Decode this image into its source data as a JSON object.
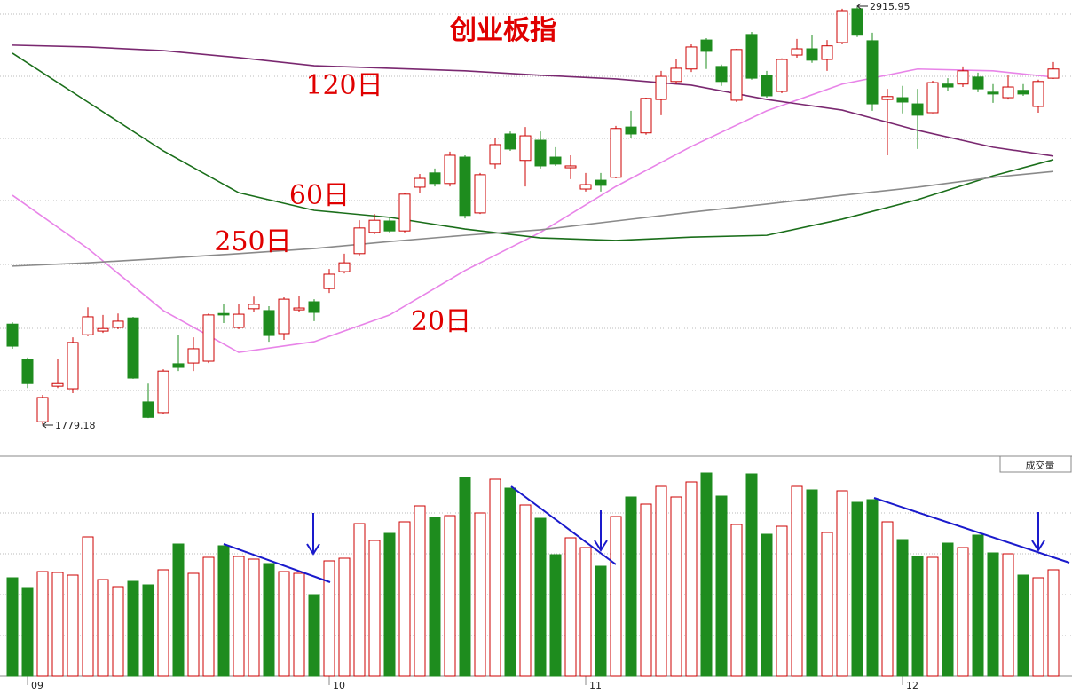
{
  "chart_data": [
    {
      "type": "candlestick",
      "title": "创业板指",
      "categories": [
        null,
        "09",
        null,
        null,
        null,
        null,
        null,
        null,
        null,
        null,
        null,
        null,
        null,
        null,
        null,
        null,
        null,
        null,
        null,
        null,
        null,
        "10",
        null,
        null,
        null,
        null,
        null,
        null,
        null,
        null,
        null,
        null,
        null,
        null,
        null,
        null,
        null,
        null,
        "11",
        null,
        null,
        null,
        null,
        null,
        null,
        null,
        null,
        null,
        null,
        null,
        null,
        null,
        null,
        null,
        null,
        null,
        null,
        null,
        null,
        "12",
        null,
        null,
        null,
        null,
        null,
        null,
        null,
        null,
        null,
        null
      ],
      "open": [
        2052,
        1956,
        1786,
        1883,
        1876,
        2023,
        2033,
        2043,
        2069,
        1840,
        1811,
        1944,
        1946,
        1951,
        2081,
        2043,
        2094,
        2089,
        2026,
        2091,
        2113,
        2149,
        2195,
        2244,
        2302,
        2333,
        2306,
        2425,
        2464,
        2435,
        2507,
        2355,
        2488,
        2570,
        2498,
        2553,
        2507,
        2478,
        2420,
        2444,
        2452,
        2589,
        2573,
        2664,
        2713,
        2747,
        2826,
        2754,
        2662,
        2841,
        2730,
        2686,
        2785,
        2802,
        2773,
        2819,
        2911,
        2824,
        2664,
        2669,
        2652,
        2628,
        2706,
        2706,
        2725,
        2684,
        2669,
        2689,
        2645,
        2722
      ],
      "high": [
        2057,
        1961,
        1859,
        1956,
        2016,
        2098,
        2077,
        2081,
        2072,
        1890,
        1929,
        2021,
        2016,
        2081,
        2106,
        2106,
        2127,
        2101,
        2125,
        2130,
        2120,
        2202,
        2244,
        2335,
        2352,
        2343,
        2410,
        2461,
        2476,
        2522,
        2512,
        2464,
        2560,
        2577,
        2589,
        2577,
        2534,
        2512,
        2464,
        2464,
        2592,
        2633,
        2669,
        2742,
        2773,
        2814,
        2831,
        2759,
        2802,
        2848,
        2742,
        2776,
        2829,
        2839,
        2826,
        2911,
        2915.95,
        2846,
        2693,
        2701,
        2693,
        2715,
        2722,
        2754,
        2737,
        2706,
        2730,
        2706,
        2718,
        2766
      ],
      "low": [
        1985,
        1878,
        1779.18,
        1878,
        1864,
        2019,
        2028,
        2038,
        1903,
        1796,
        1808,
        1924,
        1924,
        1946,
        2055,
        2038,
        2084,
        2004,
        2009,
        2086,
        2060,
        2137,
        2190,
        2239,
        2297,
        2302,
        2302,
        2408,
        2427,
        2427,
        2340,
        2352,
        2476,
        2524,
        2427,
        2476,
        2483,
        2447,
        2413,
        2413,
        2449,
        2560,
        2568,
        2621,
        2706,
        2739,
        2747,
        2701,
        2657,
        2718,
        2669,
        2681,
        2778,
        2764,
        2742,
        2814,
        2834,
        2633,
        2512,
        2626,
        2529,
        2626,
        2686,
        2698,
        2684,
        2655,
        2664,
        2674,
        2628,
        2720
      ],
      "close": [
        1992,
        1890,
        1852,
        1890,
        2002,
        2072,
        2040,
        2060,
        1905,
        1798,
        1924,
        1934,
        1985,
        2077,
        2077,
        2079,
        2106,
        2021,
        2120,
        2096,
        2084,
        2188,
        2219,
        2314,
        2335,
        2306,
        2406,
        2449,
        2435,
        2512,
        2348,
        2459,
        2541,
        2529,
        2565,
        2483,
        2488,
        2483,
        2432,
        2430,
        2585,
        2570,
        2667,
        2727,
        2749,
        2807,
        2795,
        2713,
        2800,
        2722,
        2674,
        2773,
        2802,
        2771,
        2810,
        2906,
        2839,
        2652,
        2672,
        2657,
        2621,
        2710,
        2698,
        2742,
        2693,
        2679,
        2698,
        2679,
        2713,
        2747
      ],
      "up_color": "#cc0000",
      "down_color": "#1e8c1e",
      "ylim": [
        1702,
        2935
      ],
      "lines": [
        {
          "name": "20日",
          "color": "#e884e8",
          "x": [
            0,
            5,
            10,
            15,
            20,
            25,
            30,
            35,
            40,
            45,
            50,
            55,
            60,
            65,
            69
          ],
          "values": [
            2403,
            2258,
            2089,
            1975,
            2004,
            2077,
            2198,
            2302,
            2427,
            2536,
            2633,
            2706,
            2747,
            2742,
            2725
          ]
        },
        {
          "name": "60日",
          "color": "#1a6e1a",
          "x": [
            0,
            5,
            10,
            15,
            20,
            25,
            30,
            35,
            40,
            45,
            50,
            55,
            60,
            65,
            69
          ],
          "values": [
            2790,
            2657,
            2524,
            2410,
            2362,
            2343,
            2311,
            2287,
            2280,
            2289,
            2294,
            2338,
            2391,
            2456,
            2500
          ]
        },
        {
          "name": "120日",
          "color": "#7a2870",
          "x": [
            0,
            5,
            10,
            15,
            20,
            25,
            30,
            35,
            40,
            45,
            50,
            55,
            60,
            65,
            69
          ],
          "values": [
            2812,
            2807,
            2797,
            2778,
            2756,
            2749,
            2742,
            2730,
            2720,
            2703,
            2664,
            2635,
            2580,
            2534,
            2510
          ]
        },
        {
          "name": "250日",
          "color": "#8a8a8a",
          "x": [
            0,
            5,
            10,
            15,
            20,
            25,
            30,
            35,
            40,
            45,
            50,
            55,
            60,
            65,
            69
          ],
          "values": [
            2210,
            2219,
            2231,
            2244,
            2258,
            2277,
            2294,
            2309,
            2333,
            2357,
            2379,
            2403,
            2425,
            2452,
            2468
          ]
        }
      ]
    },
    {
      "type": "bar",
      "title": "成交量",
      "values": [
        111,
        100,
        118,
        117,
        114,
        157,
        109,
        101,
        107,
        103,
        120,
        149,
        116,
        134,
        147,
        135,
        132,
        127,
        118,
        116,
        92,
        130,
        133,
        172,
        153,
        161,
        174,
        192,
        179,
        181,
        224,
        184,
        222,
        212,
        193,
        178,
        137,
        156,
        145,
        124,
        180,
        202,
        194,
        214,
        202,
        219,
        229,
        203,
        171,
        228,
        160,
        169,
        214,
        210,
        162,
        209,
        196,
        199,
        174,
        154,
        135,
        134,
        150,
        145,
        159,
        139,
        138,
        114,
        111,
        120
      ],
      "ylim": [
        0,
        240
      ]
    }
  ]
}
